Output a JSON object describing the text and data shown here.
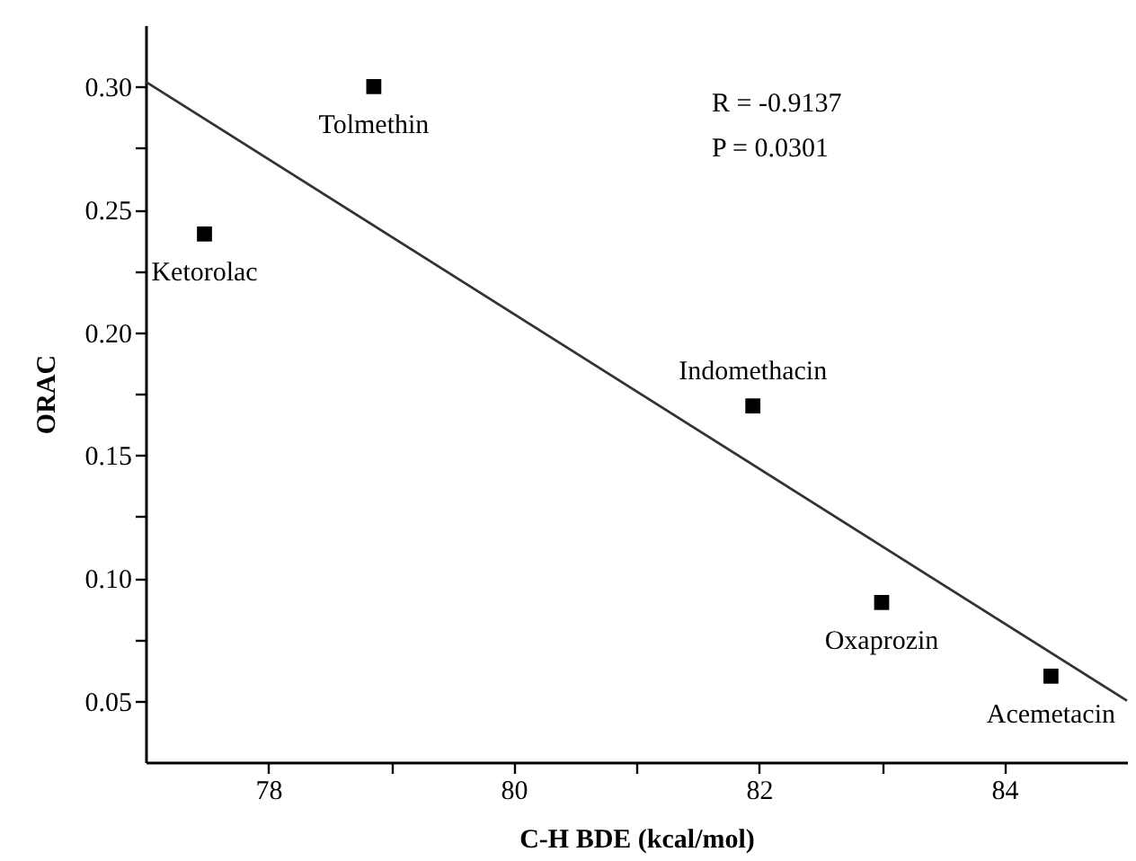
{
  "chart_data": {
    "type": "scatter",
    "xlabel": "C-H BDE (kcal/mol)",
    "ylabel": "ORAC",
    "marker": "square",
    "xlim": [
      77,
      85
    ],
    "ylim": [
      0.025,
      0.325
    ],
    "xticks": [
      78,
      {
        "value": 79,
        "label": null
      },
      80,
      {
        "value": 81,
        "label": null
      },
      82,
      {
        "value": 83,
        "label": null
      },
      84
    ],
    "yticks": [
      {
        "value": 0.05,
        "label": "0.05"
      },
      {
        "value": 0.075,
        "label": null
      },
      {
        "value": 0.1,
        "label": "0.10"
      },
      {
        "value": 0.125,
        "label": null
      },
      {
        "value": 0.15,
        "label": "0.15"
      },
      {
        "value": 0.175,
        "label": null
      },
      {
        "value": 0.2,
        "label": "0.20"
      },
      {
        "value": 0.225,
        "label": null
      },
      {
        "value": 0.25,
        "label": "0.25"
      },
      {
        "value": 0.275,
        "label": null
      },
      {
        "value": 0.3,
        "label": "0.30"
      }
    ],
    "series": [
      {
        "color": "#000000",
        "x": [
          78.86,
          77.48,
          81.95,
          83.0,
          84.38
        ],
        "values": [
          0.3,
          0.24,
          0.17,
          0.09,
          0.06
        ]
      },
      {
        "type": "line",
        "marker": "none",
        "color": "#333333",
        "x": [
          77,
          85
        ],
        "values": [
          0.302,
          0.05
        ]
      }
    ],
    "annotations": [
      {
        "text": "Tolmethin",
        "x": 78.86,
        "y": 0.3
      },
      {
        "text": "Ketorolac",
        "x": 77.48,
        "y": 0.24
      },
      {
        "text": "Indomethacin",
        "x": 81.95,
        "y": 0.17
      },
      {
        "text": "Oxaprozin",
        "x": 83.0,
        "y": 0.09
      },
      {
        "text": "Acemetacin",
        "x": 84.38,
        "y": 0.06
      },
      "R = -0.9137",
      "P = 0.0301"
    ]
  }
}
